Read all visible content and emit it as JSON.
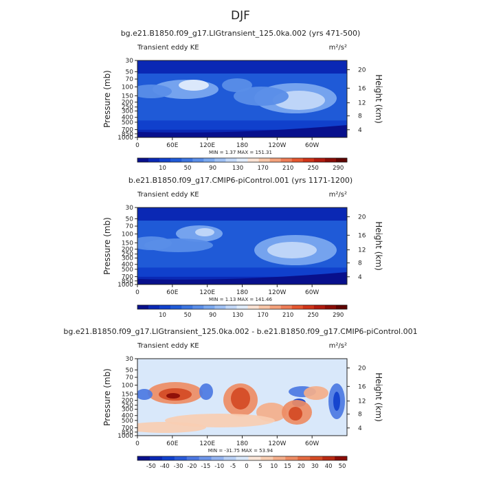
{
  "figure": {
    "title": "DJF"
  },
  "chart_data": [
    {
      "type": "heatmap",
      "title": "bg.e21.B1850.f09_g17.LIGtransient_125.0ka.002 (yrs 471-500)",
      "subtitle": "Transient eddy KE",
      "units": "m²/s²",
      "ylabel": "Pressure (mb)",
      "ylabel_right": "Height (km)",
      "x_ticks": [
        "0",
        "60E",
        "120E",
        "180",
        "120W",
        "60W"
      ],
      "y_ticks": [
        "30",
        "50",
        "70",
        "100",
        "150",
        "200",
        "250",
        "300",
        "400",
        "500",
        "700",
        "850",
        "1000"
      ],
      "y_ticks_right": [
        "20",
        "16",
        "12",
        "8",
        "4"
      ],
      "stats": "MIN =    1.37   MAX = 151.31",
      "min": 1.37,
      "max": 151.31,
      "colorbar": {
        "labels": [
          "10",
          "50",
          "90",
          "130",
          "170",
          "210",
          "250",
          "290"
        ],
        "colors": [
          "#08108c",
          "#0a28b4",
          "#1040cc",
          "#1f5ad7",
          "#3b74e0",
          "#5a8ee8",
          "#7aa8ef",
          "#9ec0f4",
          "#c2d8f8",
          "#e0ecfb",
          "#fbe3d4",
          "#f8c6a8",
          "#f4a27c",
          "#ee7c56",
          "#e4562f",
          "#cf3418",
          "#b01a0e",
          "#8a0c06",
          "#5e0402"
        ]
      }
    },
    {
      "type": "heatmap",
      "title": "b.e21.B1850.f09_g17.CMIP6-piControl.001 (yrs 1171-1200)",
      "subtitle": "Transient eddy KE",
      "units": "m²/s²",
      "ylabel": "Pressure (mb)",
      "ylabel_right": "Height (km)",
      "x_ticks": [
        "0",
        "60E",
        "120E",
        "180",
        "120W",
        "60W"
      ],
      "y_ticks": [
        "30",
        "50",
        "70",
        "100",
        "150",
        "200",
        "250",
        "300",
        "400",
        "500",
        "700",
        "850",
        "1000"
      ],
      "y_ticks_right": [
        "20",
        "16",
        "12",
        "8",
        "4"
      ],
      "stats": "MIN =    1.13   MAX = 141.46",
      "min": 1.13,
      "max": 141.46,
      "colorbar": {
        "labels": [
          "10",
          "50",
          "90",
          "130",
          "170",
          "210",
          "250",
          "290"
        ],
        "colors": [
          "#08108c",
          "#0a28b4",
          "#1040cc",
          "#1f5ad7",
          "#3b74e0",
          "#5a8ee8",
          "#7aa8ef",
          "#9ec0f4",
          "#c2d8f8",
          "#e0ecfb",
          "#fbe3d4",
          "#f8c6a8",
          "#f4a27c",
          "#ee7c56",
          "#e4562f",
          "#cf3418",
          "#b01a0e",
          "#8a0c06",
          "#5e0402"
        ]
      }
    },
    {
      "type": "heatmap",
      "title": "bg.e21.B1850.f09_g17.LIGtransient_125.0ka.002 - b.e21.B1850.f09_g17.CMIP6-piControl.001",
      "subtitle": "Transient eddy KE",
      "units": "m²/s²",
      "ylabel": "Pressure (mb)",
      "ylabel_right": "Height (km)",
      "x_ticks": [
        "0",
        "60E",
        "120E",
        "180",
        "120W",
        "60W"
      ],
      "y_ticks": [
        "30",
        "50",
        "70",
        "100",
        "150",
        "200",
        "250",
        "300",
        "400",
        "500",
        "700",
        "850",
        "1000"
      ],
      "y_ticks_right": [
        "20",
        "16",
        "12",
        "8",
        "4"
      ],
      "stats": "MIN =  -31.75   MAX =  53.94",
      "min": -31.75,
      "max": 53.94,
      "colorbar": {
        "labels": [
          "-50",
          "-40",
          "-30",
          "-20",
          "-15",
          "-10",
          "-5",
          "0",
          "5",
          "10",
          "15",
          "20",
          "30",
          "40",
          "50"
        ],
        "colors": [
          "#08108c",
          "#0a28b4",
          "#1040cc",
          "#2a5ad8",
          "#4c78e2",
          "#6e96ea",
          "#94b4f1",
          "#b8d0f6",
          "#d9e8fa",
          "#fbe6d8",
          "#f8cdb2",
          "#f4ae8a",
          "#ee8c64",
          "#e46a40",
          "#d44a24",
          "#b82a12",
          "#8a0c06"
        ]
      }
    }
  ]
}
